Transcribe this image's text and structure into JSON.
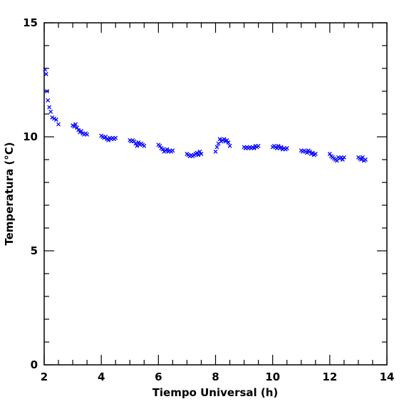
{
  "chart_data": {
    "type": "scatter",
    "xlabel": "Tiempo Universal (h)",
    "ylabel": "Temperatura (°C)",
    "xlim": [
      2,
      14
    ],
    "ylim": [
      0,
      15
    ],
    "x_ticks": [
      "2",
      "4",
      "6",
      "8",
      "10",
      "12",
      "14"
    ],
    "y_ticks": [
      "0",
      "5",
      "10",
      "15"
    ],
    "grid": false,
    "marker": "x",
    "marker_color": "#0000ff",
    "series": [
      {
        "x": [
          2.03,
          2.07,
          2.1,
          2.13,
          2.18,
          2.23,
          2.28,
          2.35,
          2.42,
          2.5,
          3.0,
          3.05,
          3.1,
          3.15,
          3.2,
          3.25,
          3.3,
          3.35,
          3.4,
          3.45,
          3.5,
          4.0,
          4.05,
          4.1,
          4.15,
          4.2,
          4.25,
          4.3,
          4.35,
          4.4,
          4.45,
          4.5,
          5.0,
          5.05,
          5.1,
          5.15,
          5.2,
          5.25,
          5.3,
          5.35,
          5.4,
          5.45,
          5.5,
          6.0,
          6.05,
          6.1,
          6.15,
          6.2,
          6.25,
          6.3,
          6.35,
          6.4,
          6.45,
          6.5,
          7.0,
          7.05,
          7.1,
          7.15,
          7.2,
          7.25,
          7.3,
          7.35,
          7.4,
          7.45,
          7.5,
          8.0,
          8.05,
          8.1,
          8.15,
          8.2,
          8.25,
          8.3,
          8.35,
          8.4,
          8.45,
          8.5,
          9.0,
          9.05,
          9.1,
          9.15,
          9.2,
          9.25,
          9.3,
          9.35,
          9.4,
          9.45,
          9.5,
          10.0,
          10.05,
          10.1,
          10.15,
          10.2,
          10.25,
          10.3,
          10.35,
          10.4,
          10.45,
          10.5,
          11.0,
          11.05,
          11.1,
          11.15,
          11.2,
          11.25,
          11.3,
          11.35,
          11.4,
          11.45,
          11.5,
          12.0,
          12.05,
          12.1,
          12.15,
          12.2,
          12.25,
          12.3,
          12.35,
          12.4,
          12.45,
          12.5,
          13.0,
          13.05,
          13.1,
          13.15,
          13.2,
          13.25
        ],
        "y": [
          12.95,
          12.75,
          12.0,
          11.6,
          11.3,
          11.1,
          10.85,
          10.8,
          10.75,
          10.55,
          10.5,
          10.45,
          10.55,
          10.4,
          10.3,
          10.2,
          10.25,
          10.15,
          10.1,
          10.15,
          10.1,
          10.05,
          10.0,
          9.95,
          10.0,
          9.9,
          9.85,
          9.95,
          9.9,
          9.95,
          9.9,
          9.95,
          9.85,
          9.8,
          9.85,
          9.8,
          9.7,
          9.6,
          9.75,
          9.65,
          9.7,
          9.65,
          9.6,
          9.65,
          9.6,
          9.5,
          9.45,
          9.35,
          9.4,
          9.45,
          9.35,
          9.4,
          9.35,
          9.4,
          9.25,
          9.2,
          9.15,
          9.2,
          9.15,
          9.2,
          9.25,
          9.3,
          9.2,
          9.35,
          9.25,
          9.35,
          9.55,
          9.7,
          9.9,
          9.8,
          9.85,
          9.9,
          9.8,
          9.85,
          9.75,
          9.6,
          9.55,
          9.5,
          9.55,
          9.5,
          9.55,
          9.5,
          9.55,
          9.5,
          9.6,
          9.55,
          9.6,
          9.55,
          9.6,
          9.55,
          9.5,
          9.6,
          9.5,
          9.55,
          9.45,
          9.5,
          9.45,
          9.5,
          9.4,
          9.35,
          9.4,
          9.35,
          9.3,
          9.4,
          9.35,
          9.25,
          9.3,
          9.2,
          9.25,
          9.25,
          9.15,
          9.1,
          9.05,
          9.0,
          8.95,
          9.1,
          9.05,
          9.1,
          9.0,
          9.1,
          9.1,
          9.05,
          9.0,
          9.1,
          8.95,
          9.0
        ]
      }
    ]
  }
}
